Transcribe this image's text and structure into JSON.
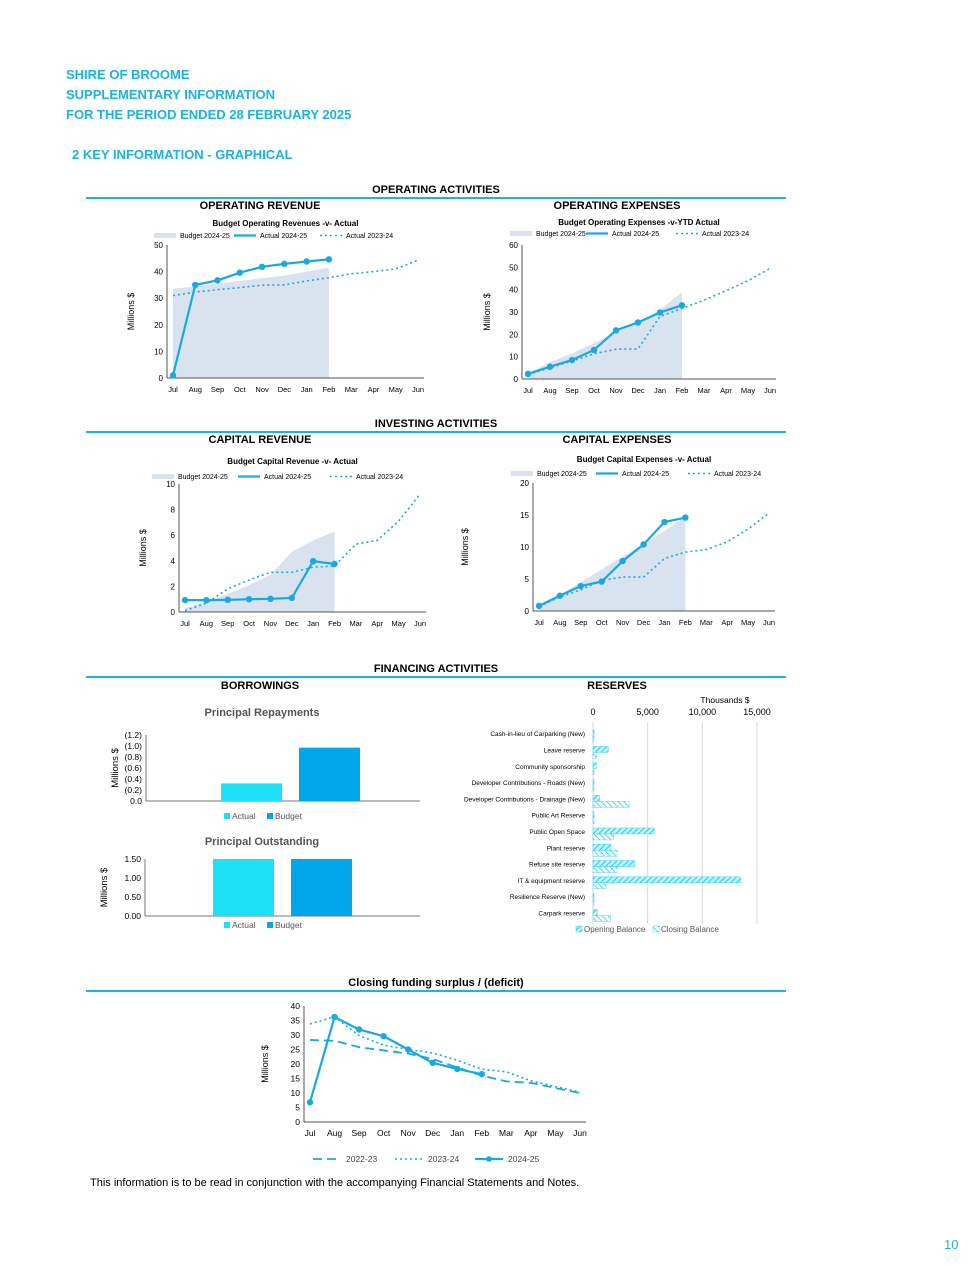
{
  "header": {
    "org": "SHIRE OF BROOME",
    "subtitle": "SUPPLEMENTARY INFORMATION",
    "period": "FOR THE PERIOD ENDED 28 FEBRUARY 2025",
    "section": "2  KEY INFORMATION - GRAPHICAL"
  },
  "sections": {
    "operating": "OPERATING ACTIVITIES",
    "operating_revenue": "OPERATING REVENUE",
    "operating_expenses": "OPERATING EXPENSES",
    "investing": "INVESTING ACTIVITIES",
    "capital_revenue": "CAPITAL REVENUE",
    "capital_expenses": "CAPITAL EXPENSES",
    "financing": "FINANCING ACTIVITIES",
    "borrowings": "BORROWINGS",
    "reserves": "RESERVES",
    "closing": "Closing funding surplus / (deficit)"
  },
  "colors": {
    "accent": "#1ab2e8",
    "budget_fill": "#d9e2ef",
    "line": "#18a9e1",
    "bar_actual": "#1ee0f7",
    "bar_budget": "#00a8ea"
  },
  "chart_data": [
    {
      "id": "op_rev",
      "type": "line",
      "title": "Budget Operating Revenues -v- Actual",
      "ylabel": "Millions $",
      "ylim": [
        0,
        50
      ],
      "yticks": [
        0,
        10,
        20,
        30,
        40,
        50
      ],
      "categories": [
        "Jul",
        "Aug",
        "Sep",
        "Oct",
        "Nov",
        "Dec",
        "Jan",
        "Feb",
        "Mar",
        "Apr",
        "May",
        "Jun"
      ],
      "series": [
        {
          "name": "Budget 2024-25",
          "style": "area",
          "values": [
            33.5,
            34.5,
            35.5,
            36.5,
            37.5,
            38.5,
            40,
            41.5,
            null,
            null,
            null,
            null
          ]
        },
        {
          "name": "Actual 2024-25",
          "style": "solid",
          "values": [
            1,
            35,
            36.7,
            39.6,
            41.8,
            42.9,
            43.8,
            44.6,
            null,
            null,
            null,
            null
          ]
        },
        {
          "name": "Actual 2023-24",
          "style": "dotted",
          "values": [
            31,
            32.3,
            33.2,
            34,
            34.9,
            35,
            36.5,
            37.7,
            39.2,
            40,
            41,
            44.3
          ]
        }
      ]
    },
    {
      "id": "op_exp",
      "type": "line",
      "title": "Budget Operating Expenses -v-YTD Actual",
      "ylabel": "Millions $",
      "ylim": [
        0,
        60
      ],
      "yticks": [
        0,
        10,
        20,
        30,
        40,
        50,
        60
      ],
      "categories": [
        "Jul",
        "Aug",
        "Sep",
        "Oct",
        "Nov",
        "Dec",
        "Jan",
        "Feb",
        "Mar",
        "Apr",
        "May",
        "Jun"
      ],
      "series": [
        {
          "name": "Budget 2024-25",
          "style": "area",
          "values": [
            2.5,
            7.5,
            11.5,
            16,
            21,
            25,
            31,
            38.8,
            null,
            null,
            null,
            null
          ]
        },
        {
          "name": "Actual 2024-25",
          "style": "solid",
          "values": [
            2.3,
            5.5,
            8.5,
            13,
            21.8,
            25.3,
            29.8,
            33,
            null,
            null,
            null,
            null
          ]
        },
        {
          "name": "Actual 2023-24",
          "style": "dotted",
          "values": [
            2,
            5,
            8,
            11.3,
            13.3,
            13.5,
            28,
            31.6,
            35.3,
            39.5,
            44,
            49.5
          ]
        }
      ]
    },
    {
      "id": "cap_rev",
      "type": "line",
      "title": "Budget Capital Revenue -v- Actual",
      "ylabel": "Millions $",
      "ylim": [
        0,
        10
      ],
      "yticks": [
        0,
        2,
        4,
        6,
        8,
        10
      ],
      "categories": [
        "Jul",
        "Aug",
        "Sep",
        "Oct",
        "Nov",
        "Dec",
        "Jan",
        "Feb",
        "Mar",
        "Apr",
        "May",
        "Jun"
      ],
      "series": [
        {
          "name": "Budget 2024-25",
          "style": "area",
          "values": [
            0.3,
            0.8,
            1.4,
            2.1,
            2.9,
            4.7,
            5.6,
            6.3,
            null,
            null,
            null,
            null
          ]
        },
        {
          "name": "Actual 2024-25",
          "style": "solid",
          "values": [
            0.93,
            0.93,
            0.95,
            1,
            1.03,
            1.1,
            3.97,
            3.75,
            null,
            null,
            null,
            null
          ]
        },
        {
          "name": "Actual 2023-24",
          "style": "dotted",
          "values": [
            0.1,
            0.7,
            1.8,
            2.5,
            3.1,
            3.1,
            3.5,
            3.6,
            5.3,
            5.6,
            7.1,
            9.2
          ]
        }
      ]
    },
    {
      "id": "cap_exp",
      "type": "line",
      "title": "Budget Capital Expenses -v- Actual",
      "ylabel": "Millions $",
      "ylim": [
        0,
        20
      ],
      "yticks": [
        0,
        5,
        10,
        15,
        20
      ],
      "categories": [
        "Jul",
        "Aug",
        "Sep",
        "Oct",
        "Nov",
        "Dec",
        "Jan",
        "Feb",
        "Mar",
        "Apr",
        "May",
        "Jun"
      ],
      "series": [
        {
          "name": "Budget 2024-25",
          "style": "area",
          "values": [
            0.8,
            2.5,
            4.5,
            6.5,
            8.5,
            10.5,
            12.5,
            14.8,
            null,
            null,
            null,
            null
          ]
        },
        {
          "name": "Actual 2024-25",
          "style": "solid",
          "values": [
            0.8,
            2.4,
            3.9,
            4.6,
            7.8,
            10.4,
            13.9,
            14.6,
            null,
            null,
            null,
            null
          ]
        },
        {
          "name": "Actual 2023-24",
          "style": "dotted",
          "values": [
            0.7,
            2.2,
            3.3,
            4.8,
            5.3,
            5.3,
            8.2,
            9.2,
            9.6,
            10.8,
            12.8,
            15.3
          ]
        }
      ]
    },
    {
      "id": "repay",
      "type": "bar",
      "title": "Principal Repayments",
      "ylabel": "Millions $",
      "ylim": [
        0,
        1.2
      ],
      "yticks": [
        0,
        0.2,
        0.4,
        0.6,
        0.8,
        1.0,
        1.2
      ],
      "ytick_labels": [
        "0.0",
        "(0.2)",
        "(0.4)",
        "(0.6)",
        "(0.8)",
        "(1.0)",
        "(1.2)"
      ],
      "series": [
        {
          "name": "Actual",
          "values": [
            0.32
          ]
        },
        {
          "name": "Budget",
          "values": [
            0.97
          ]
        }
      ]
    },
    {
      "id": "outstanding",
      "type": "bar",
      "title": "Principal Outstanding",
      "ylabel": "Millions $",
      "ylim": [
        0,
        1.5
      ],
      "yticks": [
        0,
        0.5,
        1.0,
        1.5
      ],
      "ytick_labels": [
        "0.00",
        "0.50",
        "1.00",
        "1.50"
      ],
      "series": [
        {
          "name": "Actual",
          "values": [
            1.5
          ]
        },
        {
          "name": "Budget",
          "values": [
            1.5
          ]
        }
      ]
    },
    {
      "id": "reserves",
      "type": "bar",
      "xlabel": "Thousands $",
      "xlim": [
        0,
        15000
      ],
      "xticks": [
        0,
        5000,
        10000,
        15000
      ],
      "xtick_labels": [
        "0",
        "5,000",
        "10,000",
        "15,000"
      ],
      "categories": [
        "Cash-in-lieu of Carparking (New)",
        "Leave reserve",
        "Community sponsorship",
        "Developer Contributions - Roads (New)",
        "Developer Contributions - Drainage (New)",
        "Public Art Reserve",
        "Public Open Space",
        "Plant reserve",
        "Refuse site reserve",
        "IT & equipment reserve",
        "Resilience Reserve (New)",
        "Carpark reserve"
      ],
      "series": [
        {
          "name": "Opening Balance",
          "values": [
            100,
            1400,
            300,
            60,
            600,
            60,
            5600,
            1600,
            3800,
            13500,
            80,
            400
          ]
        },
        {
          "name": "Closing Balance",
          "values": [
            50,
            300,
            40,
            30,
            3300,
            80,
            1900,
            2200,
            2200,
            1200,
            50,
            1600
          ]
        }
      ]
    },
    {
      "id": "closing",
      "type": "line",
      "ylabel": "Millions $",
      "ylim": [
        0,
        40
      ],
      "yticks": [
        0,
        5,
        10,
        15,
        20,
        25,
        30,
        35,
        40
      ],
      "categories": [
        "Jul",
        "Aug",
        "Sep",
        "Oct",
        "Nov",
        "Dec",
        "Jan",
        "Feb",
        "Mar",
        "Apr",
        "May",
        "Jun"
      ],
      "series": [
        {
          "name": "2022-23",
          "style": "dashed",
          "values": [
            28.3,
            28,
            25.8,
            24.7,
            23.6,
            21.7,
            18.8,
            16,
            14,
            13.5,
            11.7,
            10
          ]
        },
        {
          "name": "2023-24",
          "style": "dotted",
          "values": [
            33.8,
            36.3,
            29.8,
            26.5,
            25,
            23.8,
            21.3,
            18.2,
            17.3,
            14.2,
            12.2,
            10.3
          ]
        },
        {
          "name": "2024-25",
          "style": "solid",
          "values": [
            6.8,
            36.2,
            31.9,
            29.6,
            25,
            20.4,
            18.3,
            16.5,
            null,
            null,
            null,
            null
          ]
        }
      ]
    }
  ],
  "footer": {
    "note": "This information is to be read in conjunction with the accompanying Financial Statements and Notes.",
    "page": "10"
  }
}
